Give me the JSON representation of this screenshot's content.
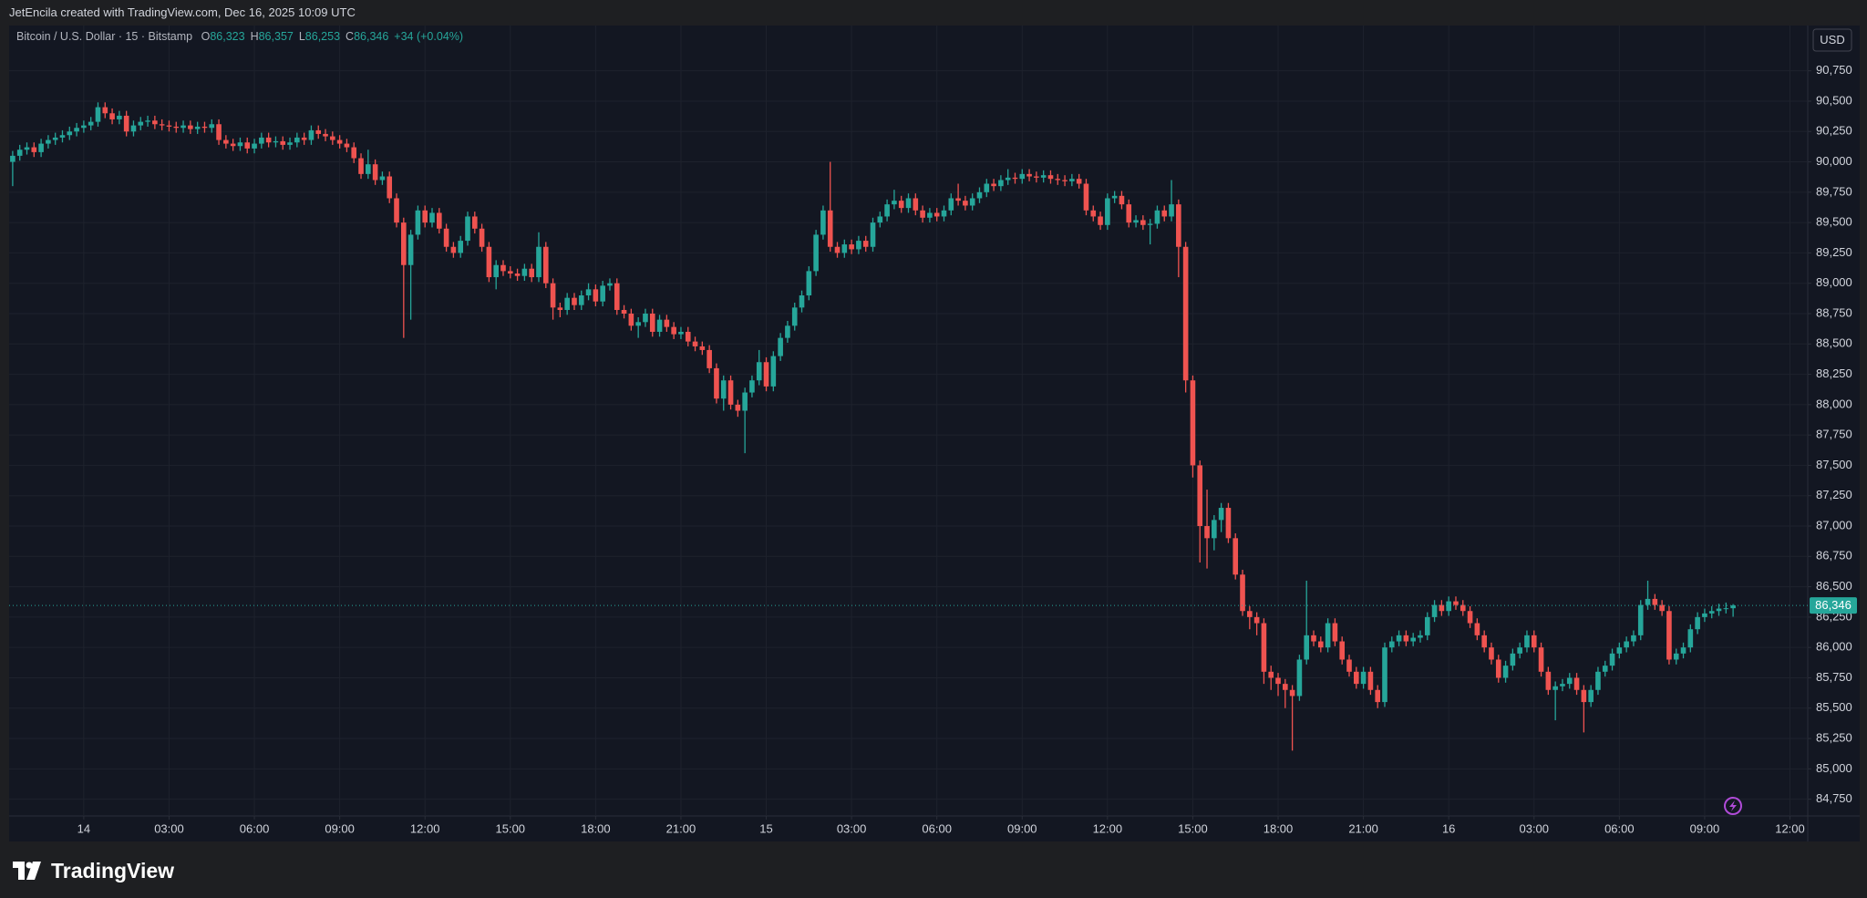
{
  "header": {
    "author_line": "JetEncila created with TradingView.com, Dec 16, 2025 10:09 UTC"
  },
  "legend": {
    "symbol": "Bitcoin / U.S. Dollar · 15 · Bitstamp",
    "fields": [
      {
        "key": "O",
        "value": "86,323"
      },
      {
        "key": "H",
        "value": "86,357"
      },
      {
        "key": "L",
        "value": "86,253"
      },
      {
        "key": "C",
        "value": "86,346"
      }
    ],
    "change": "+34 (+0.04%)"
  },
  "currency": "USD",
  "footer": {
    "brand": "TradingView"
  },
  "chart_data": {
    "type": "candlestick",
    "up_color": "#26a69a",
    "down_color": "#ef5350",
    "grid": true,
    "last_price_label": "86,346",
    "xlim": [
      -0.5,
      252.5
    ],
    "xticks": [
      {
        "value": 10,
        "label": "14"
      },
      {
        "value": 22,
        "label": "03:00"
      },
      {
        "value": 34,
        "label": "06:00"
      },
      {
        "value": 46,
        "label": "09:00"
      },
      {
        "value": 58,
        "label": "12:00"
      },
      {
        "value": 70,
        "label": "15:00"
      },
      {
        "value": 82,
        "label": "18:00"
      },
      {
        "value": 94,
        "label": "21:00"
      },
      {
        "value": 106,
        "label": "15"
      },
      {
        "value": 118,
        "label": "03:00"
      },
      {
        "value": 130,
        "label": "06:00"
      },
      {
        "value": 142,
        "label": "09:00"
      },
      {
        "value": 154,
        "label": "12:00"
      },
      {
        "value": 166,
        "label": "15:00"
      },
      {
        "value": 178,
        "label": "18:00"
      },
      {
        "value": 190,
        "label": "21:00"
      },
      {
        "value": 202,
        "label": "16"
      },
      {
        "value": 214,
        "label": "03:00"
      },
      {
        "value": 226,
        "label": "06:00"
      },
      {
        "value": 238,
        "label": "09:00"
      },
      {
        "value": 250,
        "label": "12:00"
      }
    ],
    "ylim": [
      84612,
      91123
    ],
    "yticks": [
      {
        "value": 84750,
        "label": "84,750"
      },
      {
        "value": 85000,
        "label": "85,000"
      },
      {
        "value": 85250,
        "label": "85,250"
      },
      {
        "value": 85500,
        "label": "85,500"
      },
      {
        "value": 85750,
        "label": "85,750"
      },
      {
        "value": 86000,
        "label": "86,000"
      },
      {
        "value": 86250,
        "label": "86,250"
      },
      {
        "value": 86500,
        "label": "86,500"
      },
      {
        "value": 86750,
        "label": "86,750"
      },
      {
        "value": 87000,
        "label": "87,000"
      },
      {
        "value": 87250,
        "label": "87,250"
      },
      {
        "value": 87500,
        "label": "87,500"
      },
      {
        "value": 87750,
        "label": "87,750"
      },
      {
        "value": 88000,
        "label": "88,000"
      },
      {
        "value": 88250,
        "label": "88,250"
      },
      {
        "value": 88500,
        "label": "88,500"
      },
      {
        "value": 88750,
        "label": "88,750"
      },
      {
        "value": 89000,
        "label": "89,000"
      },
      {
        "value": 89250,
        "label": "89,250"
      },
      {
        "value": 89500,
        "label": "89,500"
      },
      {
        "value": 89750,
        "label": "89,750"
      },
      {
        "value": 90000,
        "label": "90,000"
      },
      {
        "value": 90250,
        "label": "90,250"
      },
      {
        "value": 90500,
        "label": "90,500"
      },
      {
        "value": 90750,
        "label": "90,750"
      }
    ],
    "open": [
      90000,
      90050,
      90100,
      90120,
      90080,
      90150,
      90180,
      90200,
      90220,
      90250,
      90280,
      90300,
      90330,
      90450,
      90400,
      90350,
      90380,
      90250,
      90300,
      90330,
      90340,
      90310,
      90300,
      90290,
      90280,
      90300,
      90270,
      90290,
      90280,
      90310,
      90180,
      90150,
      90130,
      90160,
      90110,
      90150,
      90200,
      90160,
      90170,
      90140,
      90160,
      90200,
      90180,
      90260,
      90230,
      90210,
      90180,
      90150,
      90120,
      90030,
      89900,
      89980,
      89850,
      89880,
      89700,
      89500,
      89150,
      89400,
      89600,
      89500,
      89580,
      89450,
      89300,
      89250,
      89350,
      89550,
      89450,
      89300,
      89050,
      89150,
      89100,
      89080,
      89060,
      89120,
      89050,
      89300,
      89000,
      88800,
      88780,
      88880,
      88820,
      88900,
      88950,
      88850,
      88980,
      89000,
      88780,
      88750,
      88650,
      88680,
      88750,
      88600,
      88700,
      88640,
      88580,
      88600,
      88520,
      88480,
      88450,
      88300,
      88050,
      88200,
      88000,
      87950,
      88100,
      88200,
      88350,
      88150,
      88400,
      88550,
      88650,
      88800,
      88900,
      89100,
      89400,
      89600,
      89300,
      89250,
      89320,
      89280,
      89350,
      89300,
      89500,
      89550,
      89650,
      89680,
      89620,
      89700,
      89600,
      89540,
      89580,
      89550,
      89600,
      89700,
      89680,
      89640,
      89700,
      89750,
      89820,
      89800,
      89850,
      89870,
      89860,
      89900,
      89880,
      89870,
      89890,
      89860,
      89850,
      89840,
      89860,
      89820,
      89600,
      89550,
      89480,
      89700,
      89720,
      89650,
      89500,
      89520,
      89480,
      89490,
      89600,
      89550,
      89650,
      89300,
      88200,
      87500,
      87000,
      86900,
      87050,
      87150,
      86900,
      86600,
      86300,
      86250,
      86200,
      85800,
      85750,
      85700,
      85650,
      85600,
      85900,
      86100,
      86050,
      86000,
      86200,
      86050,
      85900,
      85800,
      85700,
      85800,
      85650,
      85550,
      86000,
      86050,
      86100,
      86050,
      86080,
      86100,
      86250,
      86350,
      86300,
      86380,
      86350,
      86300,
      86200,
      86100,
      86000,
      85900,
      85750,
      85850,
      85950,
      86000,
      86100,
      86000,
      85800,
      85650,
      85680,
      85700,
      85750,
      85650,
      85550,
      85650,
      85800,
      85850,
      85950,
      86000,
      86050,
      86100,
      86350,
      86400,
      86350,
      86300,
      85900,
      85950,
      86000,
      86150,
      86250,
      86280,
      86300,
      86320,
      86323
    ],
    "high": [
      90090,
      90140,
      90160,
      90160,
      90190,
      90220,
      90240,
      90260,
      90290,
      90320,
      90340,
      90370,
      90490,
      90490,
      90440,
      90420,
      90420,
      90340,
      90370,
      90380,
      90380,
      90350,
      90340,
      90330,
      90340,
      90340,
      90330,
      90330,
      90350,
      90350,
      90220,
      90190,
      90200,
      90200,
      90190,
      90240,
      90240,
      90210,
      90210,
      90200,
      90240,
      90240,
      90300,
      90300,
      90270,
      90250,
      90220,
      90190,
      90160,
      90070,
      90100,
      90020,
      89920,
      89920,
      89740,
      89540,
      89440,
      89640,
      89640,
      89620,
      89620,
      89490,
      89340,
      89390,
      89590,
      89590,
      89490,
      89340,
      89190,
      89190,
      89140,
      89120,
      89160,
      89160,
      89420,
      89340,
      89040,
      88840,
      88920,
      88920,
      88940,
      89000,
      88990,
      89020,
      89040,
      89040,
      88820,
      88790,
      88720,
      88790,
      88790,
      88740,
      88740,
      88680,
      88640,
      88640,
      88560,
      88520,
      88490,
      88340,
      88240,
      88240,
      88040,
      88140,
      88240,
      88450,
      88390,
      88440,
      88590,
      88690,
      88840,
      88940,
      89140,
      89440,
      89640,
      90000,
      89340,
      89360,
      89360,
      89390,
      89390,
      89540,
      89590,
      89690,
      89770,
      89720,
      89740,
      89740,
      89640,
      89620,
      89620,
      89640,
      89740,
      89820,
      89720,
      89740,
      89790,
      89860,
      89860,
      89890,
      89940,
      89910,
      89940,
      89940,
      89920,
      89930,
      89930,
      89900,
      89890,
      89900,
      89900,
      89860,
      89640,
      89590,
      89740,
      89760,
      89760,
      89690,
      89560,
      89560,
      89530,
      89640,
      89640,
      89850,
      89690,
      89340,
      88240,
      87540,
      87300,
      87090,
      87190,
      87190,
      86940,
      86640,
      86340,
      86290,
      86240,
      85850,
      85790,
      85740,
      85690,
      85940,
      86550,
      86140,
      86090,
      86240,
      86240,
      86090,
      85940,
      85840,
      85840,
      85840,
      85690,
      86040,
      86090,
      86140,
      86140,
      86120,
      86140,
      86290,
      86390,
      86390,
      86420,
      86420,
      86390,
      86340,
      86240,
      86140,
      86040,
      85940,
      85890,
      85990,
      86040,
      86140,
      86140,
      86040,
      85840,
      85720,
      85740,
      85790,
      85790,
      85690,
      85690,
      85840,
      85890,
      85990,
      86040,
      86090,
      86140,
      86390,
      86550,
      86440,
      86390,
      86340,
      85990,
      86040,
      86190,
      86290,
      86320,
      86340,
      86360,
      86370,
      86357
    ],
    "low": [
      89800,
      90010,
      90060,
      90040,
      90040,
      90110,
      90140,
      90160,
      90180,
      90210,
      90240,
      90260,
      90290,
      90360,
      90310,
      90310,
      90210,
      90210,
      90260,
      90290,
      90270,
      90260,
      90250,
      90240,
      90240,
      90230,
      90230,
      90240,
      90240,
      90140,
      90110,
      90090,
      90090,
      90070,
      90070,
      90110,
      90120,
      90120,
      90100,
      90100,
      90120,
      90140,
      90140,
      90190,
      90170,
      90140,
      90110,
      90080,
      89990,
      89860,
      89860,
      89810,
      89810,
      89660,
      89460,
      88550,
      88700,
      89360,
      89460,
      89460,
      89410,
      89260,
      89210,
      89210,
      89310,
      89410,
      89260,
      89010,
      88950,
      89060,
      89040,
      89020,
      89020,
      89010,
      89010,
      88960,
      88700,
      88720,
      88740,
      88780,
      88780,
      88860,
      88810,
      88810,
      88940,
      88740,
      88710,
      88610,
      88550,
      88640,
      88560,
      88560,
      88600,
      88540,
      88540,
      88480,
      88440,
      88410,
      88260,
      88010,
      87950,
      87960,
      87900,
      87600,
      88060,
      88160,
      88110,
      88110,
      88360,
      88510,
      88610,
      88760,
      88860,
      89060,
      89360,
      89260,
      89210,
      89210,
      89240,
      89240,
      89260,
      89260,
      89460,
      89510,
      89610,
      89580,
      89580,
      89560,
      89500,
      89500,
      89510,
      89510,
      89560,
      89640,
      89600,
      89600,
      89660,
      89710,
      89760,
      89760,
      89810,
      89820,
      89820,
      89840,
      89830,
      89830,
      89820,
      89810,
      89800,
      89800,
      89780,
      89560,
      89510,
      89440,
      89440,
      89660,
      89610,
      89460,
      89460,
      89440,
      89320,
      89450,
      89510,
      89510,
      89050,
      88100,
      87400,
      86700,
      86650,
      86800,
      86950,
      86860,
      86560,
      86260,
      86150,
      86100,
      85700,
      85650,
      85600,
      85500,
      85150,
      85560,
      85860,
      86010,
      85960,
      85960,
      86010,
      85860,
      85760,
      85660,
      85660,
      85610,
      85500,
      85510,
      85960,
      86010,
      86010,
      86010,
      86040,
      86060,
      86210,
      86260,
      86260,
      86310,
      86260,
      86160,
      86060,
      85960,
      85860,
      85710,
      85710,
      85810,
      85910,
      85960,
      85960,
      85760,
      85610,
      85400,
      85640,
      85660,
      85610,
      85300,
      85510,
      85610,
      85760,
      85810,
      85910,
      85960,
      86010,
      86060,
      86310,
      86310,
      86260,
      85860,
      85860,
      85910,
      85960,
      86110,
      86210,
      86240,
      86260,
      86280,
      86253
    ],
    "close": [
      90050,
      90100,
      90120,
      90080,
      90150,
      90180,
      90200,
      90220,
      90250,
      90280,
      90300,
      90330,
      90450,
      90400,
      90350,
      90380,
      90250,
      90300,
      90330,
      90340,
      90310,
      90300,
      90290,
      90280,
      90300,
      90270,
      90290,
      90280,
      90310,
      90180,
      90150,
      90130,
      90160,
      90110,
      90150,
      90200,
      90160,
      90170,
      90140,
      90160,
      90200,
      90180,
      90260,
      90230,
      90210,
      90180,
      90150,
      90120,
      90030,
      89900,
      89980,
      89850,
      89880,
      89700,
      89500,
      89150,
      89400,
      89600,
      89500,
      89580,
      89450,
      89300,
      89250,
      89350,
      89550,
      89450,
      89300,
      89050,
      89150,
      89100,
      89080,
      89060,
      89120,
      89050,
      89300,
      89000,
      88800,
      88780,
      88880,
      88820,
      88900,
      88950,
      88850,
      88980,
      89000,
      88780,
      88750,
      88650,
      88680,
      88750,
      88600,
      88700,
      88640,
      88580,
      88600,
      88520,
      88480,
      88450,
      88300,
      88050,
      88200,
      88000,
      87950,
      88100,
      88200,
      88350,
      88150,
      88400,
      88550,
      88650,
      88800,
      88900,
      89100,
      89400,
      89600,
      89300,
      89250,
      89320,
      89280,
      89350,
      89300,
      89500,
      89550,
      89650,
      89680,
      89620,
      89700,
      89600,
      89540,
      89580,
      89550,
      89600,
      89700,
      89680,
      89640,
      89700,
      89750,
      89820,
      89800,
      89850,
      89870,
      89860,
      89900,
      89880,
      89870,
      89890,
      89860,
      89850,
      89840,
      89860,
      89820,
      89600,
      89550,
      89480,
      89700,
      89720,
      89650,
      89500,
      89520,
      89480,
      89490,
      89600,
      89550,
      89650,
      89300,
      88200,
      87500,
      87000,
      86900,
      87050,
      87150,
      86900,
      86600,
      86300,
      86250,
      86200,
      85800,
      85750,
      85700,
      85650,
      85600,
      85900,
      86100,
      86050,
      86000,
      86200,
      86050,
      85900,
      85800,
      85700,
      85800,
      85650,
      85550,
      86000,
      86050,
      86100,
      86050,
      86080,
      86100,
      86250,
      86350,
      86300,
      86380,
      86350,
      86300,
      86200,
      86100,
      86000,
      85900,
      85750,
      85850,
      85950,
      86000,
      86100,
      86000,
      85800,
      85650,
      85680,
      85700,
      85750,
      85650,
      85550,
      85650,
      85800,
      85850,
      85950,
      86000,
      86050,
      86100,
      86350,
      86400,
      86350,
      86300,
      85900,
      85950,
      86000,
      86150,
      86250,
      86280,
      86300,
      86320,
      86323,
      86346
    ]
  }
}
